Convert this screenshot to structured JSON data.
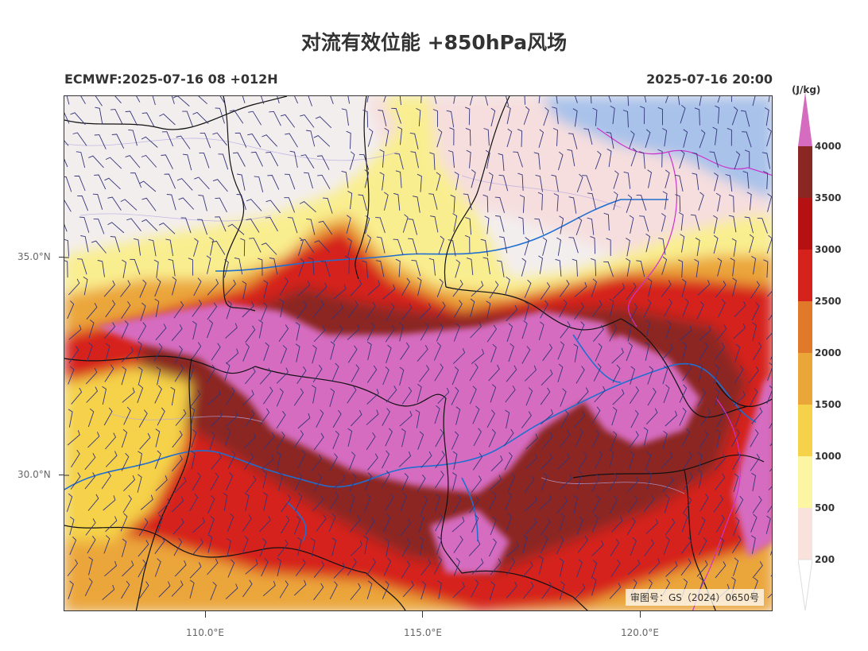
{
  "title": "对流有效位能 +850hPa风场",
  "model_info": "ECMWF:2025-07-16 08 +012H",
  "valid_time": "2025-07-16 20:00",
  "review_number": "审图号：GS（2024）0650号",
  "lat_labels": [
    "35.0°N",
    "30.0°N"
  ],
  "lon_labels": [
    "110.0°E",
    "115.0°E",
    "120.0°E"
  ],
  "colorbar": {
    "unit": "(J/kg)",
    "ticks": [
      "200",
      "500",
      "1000",
      "1500",
      "2000",
      "2500",
      "3000",
      "3500",
      "4000"
    ],
    "colors": [
      "#f9e2dc",
      "#fcf6a3",
      "#f5d24a",
      "#eba63a",
      "#e0792a",
      "#d6221c",
      "#b51012",
      "#8b2723",
      "#d56cc0"
    ]
  },
  "layers": {
    "cape_fill": "CAPE shaded",
    "wind_barbs": "850hPa wind",
    "rivers": "blue",
    "provincial_borders": "black",
    "coastline": "magenta"
  }
}
